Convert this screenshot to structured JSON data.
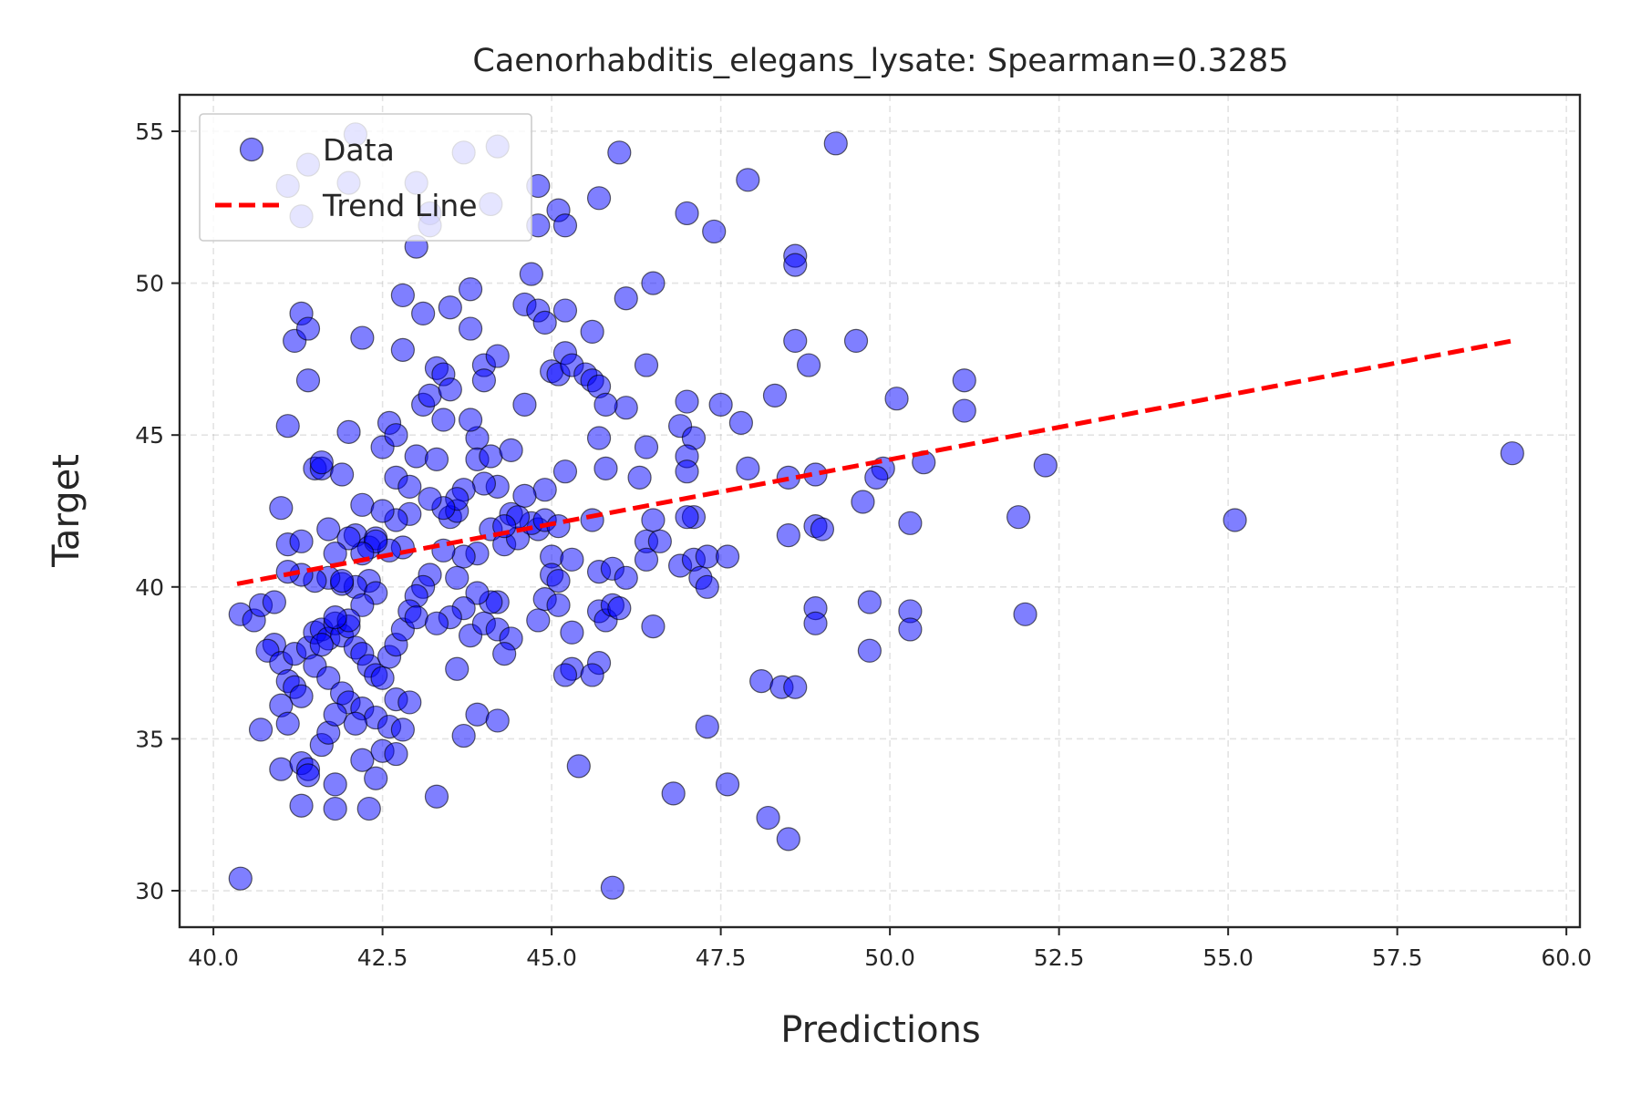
{
  "chart_data": {
    "type": "scatter",
    "title": "Caenorhabditis_elegans_lysate: Spearman=0.3285",
    "xlabel": "Predictions",
    "ylabel": "Target",
    "xlim": [
      39.5,
      60.2
    ],
    "ylim": [
      28.8,
      56.2
    ],
    "xticks": [
      40.0,
      42.5,
      45.0,
      47.5,
      50.0,
      52.5,
      55.0,
      57.5,
      60.0
    ],
    "xtick_labels": [
      "40.0",
      "42.5",
      "45.0",
      "47.5",
      "50.0",
      "52.5",
      "55.0",
      "57.5",
      "60.0"
    ],
    "yticks": [
      30,
      35,
      40,
      45,
      50,
      55
    ],
    "ytick_labels": [
      "30",
      "35",
      "40",
      "45",
      "50",
      "55"
    ],
    "grid": true,
    "legend_position": "top-left",
    "colors": {
      "points": "#0000ff",
      "point_edge": "#000000",
      "trend": "#ff0000"
    },
    "series": [
      {
        "name": "Data",
        "kind": "scatter",
        "points": [
          [
            40.4,
            30.4
          ],
          [
            40.4,
            39.1
          ],
          [
            40.6,
            38.9
          ],
          [
            40.7,
            39.4
          ],
          [
            40.7,
            35.3
          ],
          [
            40.9,
            39.5
          ],
          [
            41.0,
            42.6
          ],
          [
            41.0,
            34.0
          ],
          [
            41.1,
            45.3
          ],
          [
            41.1,
            41.4
          ],
          [
            41.2,
            48.1
          ],
          [
            41.3,
            41.5
          ],
          [
            41.3,
            49.0
          ],
          [
            41.4,
            48.5
          ],
          [
            41.4,
            46.8
          ],
          [
            41.5,
            43.9
          ],
          [
            41.6,
            43.9
          ],
          [
            41.6,
            44.1
          ],
          [
            41.7,
            41.9
          ],
          [
            41.9,
            43.7
          ],
          [
            42.0,
            45.1
          ],
          [
            42.1,
            41.7
          ],
          [
            42.2,
            48.2
          ],
          [
            42.2,
            42.7
          ],
          [
            42.3,
            41.3
          ],
          [
            42.4,
            41.6
          ],
          [
            42.5,
            44.6
          ],
          [
            42.6,
            45.4
          ],
          [
            42.7,
            45.0
          ],
          [
            42.7,
            43.6
          ],
          [
            42.8,
            47.8
          ],
          [
            42.8,
            49.6
          ],
          [
            42.9,
            43.3
          ],
          [
            43.0,
            44.3
          ],
          [
            43.1,
            49.0
          ],
          [
            43.1,
            46.0
          ],
          [
            43.2,
            46.3
          ],
          [
            43.3,
            47.2
          ],
          [
            43.3,
            44.2
          ],
          [
            43.4,
            47.0
          ],
          [
            43.4,
            45.5
          ],
          [
            43.5,
            46.5
          ],
          [
            43.5,
            42.3
          ],
          [
            43.6,
            42.5
          ],
          [
            43.8,
            48.5
          ],
          [
            43.9,
            44.9
          ],
          [
            43.9,
            41.1
          ],
          [
            43.7,
            41.0
          ],
          [
            43.4,
            41.2
          ],
          [
            43.2,
            40.4
          ],
          [
            43.1,
            40.0
          ],
          [
            43.0,
            39.7
          ],
          [
            42.8,
            41.3
          ],
          [
            42.6,
            41.2
          ],
          [
            42.3,
            40.2
          ],
          [
            42.1,
            40.0
          ],
          [
            41.9,
            40.1
          ],
          [
            41.7,
            40.3
          ],
          [
            41.5,
            40.2
          ],
          [
            41.3,
            40.4
          ],
          [
            41.1,
            40.5
          ],
          [
            40.9,
            38.1
          ],
          [
            40.8,
            37.9
          ],
          [
            41.0,
            37.5
          ],
          [
            41.1,
            36.9
          ],
          [
            41.2,
            36.7
          ],
          [
            41.3,
            36.4
          ],
          [
            41.2,
            37.8
          ],
          [
            41.4,
            38.0
          ],
          [
            41.5,
            38.5
          ],
          [
            41.6,
            38.6
          ],
          [
            41.7,
            38.3
          ],
          [
            41.8,
            38.8
          ],
          [
            41.9,
            38.4
          ],
          [
            42.0,
            38.7
          ],
          [
            42.1,
            38.0
          ],
          [
            42.2,
            37.8
          ],
          [
            42.3,
            37.4
          ],
          [
            42.4,
            37.1
          ],
          [
            42.5,
            37.0
          ],
          [
            42.6,
            37.7
          ],
          [
            42.7,
            38.1
          ],
          [
            42.8,
            38.6
          ],
          [
            42.9,
            39.2
          ],
          [
            43.0,
            39.0
          ],
          [
            42.4,
            39.8
          ],
          [
            42.2,
            39.4
          ],
          [
            42.0,
            38.9
          ],
          [
            41.8,
            39.0
          ],
          [
            41.6,
            38.1
          ],
          [
            41.5,
            37.4
          ],
          [
            41.7,
            37.0
          ],
          [
            41.9,
            36.5
          ],
          [
            42.0,
            36.2
          ],
          [
            42.2,
            36.0
          ],
          [
            42.4,
            35.7
          ],
          [
            42.6,
            35.4
          ],
          [
            42.8,
            35.3
          ],
          [
            42.7,
            36.3
          ],
          [
            42.9,
            36.2
          ],
          [
            41.0,
            36.1
          ],
          [
            41.1,
            35.5
          ],
          [
            41.3,
            34.2
          ],
          [
            41.4,
            34.0
          ],
          [
            41.4,
            33.8
          ],
          [
            41.6,
            34.8
          ],
          [
            41.7,
            35.2
          ],
          [
            41.8,
            35.8
          ],
          [
            42.1,
            35.5
          ],
          [
            42.2,
            34.3
          ],
          [
            42.4,
            33.7
          ],
          [
            42.5,
            34.6
          ],
          [
            42.7,
            34.5
          ],
          [
            41.8,
            33.5
          ],
          [
            41.3,
            32.8
          ],
          [
            41.8,
            32.7
          ],
          [
            42.3,
            32.7
          ],
          [
            41.4,
            53.9
          ],
          [
            41.1,
            53.2
          ],
          [
            41.3,
            52.2
          ],
          [
            42.1,
            54.9
          ],
          [
            42.0,
            53.3
          ],
          [
            43.0,
            53.3
          ],
          [
            43.2,
            52.3
          ],
          [
            43.2,
            51.9
          ],
          [
            43.0,
            51.2
          ],
          [
            43.7,
            54.3
          ],
          [
            44.2,
            54.5
          ],
          [
            44.1,
            52.6
          ],
          [
            44.8,
            53.2
          ],
          [
            44.8,
            51.9
          ],
          [
            45.1,
            52.4
          ],
          [
            45.2,
            51.9
          ],
          [
            46.0,
            54.3
          ],
          [
            45.7,
            52.8
          ],
          [
            47.0,
            52.3
          ],
          [
            47.4,
            51.7
          ],
          [
            47.9,
            53.4
          ],
          [
            49.2,
            54.6
          ],
          [
            48.6,
            50.9
          ],
          [
            48.6,
            50.6
          ],
          [
            43.5,
            49.2
          ],
          [
            43.8,
            49.8
          ],
          [
            44.6,
            49.3
          ],
          [
            44.7,
            50.3
          ],
          [
            44.8,
            49.1
          ],
          [
            44.9,
            48.7
          ],
          [
            45.2,
            49.1
          ],
          [
            45.6,
            48.4
          ],
          [
            46.1,
            49.5
          ],
          [
            46.5,
            50.0
          ],
          [
            44.0,
            47.3
          ],
          [
            44.2,
            47.6
          ],
          [
            45.0,
            47.1
          ],
          [
            45.1,
            47.0
          ],
          [
            45.2,
            47.7
          ],
          [
            45.3,
            47.3
          ],
          [
            45.5,
            47.0
          ],
          [
            45.6,
            46.8
          ],
          [
            45.7,
            46.6
          ],
          [
            46.4,
            47.3
          ],
          [
            46.1,
            45.9
          ],
          [
            45.8,
            46.0
          ],
          [
            44.6,
            46.0
          ],
          [
            44.0,
            46.8
          ],
          [
            43.8,
            45.5
          ],
          [
            43.9,
            44.2
          ],
          [
            44.1,
            44.3
          ],
          [
            44.4,
            44.5
          ],
          [
            45.2,
            43.8
          ],
          [
            45.7,
            44.9
          ],
          [
            45.8,
            43.9
          ],
          [
            46.3,
            43.6
          ],
          [
            46.4,
            44.6
          ],
          [
            46.9,
            45.3
          ],
          [
            47.0,
            46.1
          ],
          [
            47.1,
            44.9
          ],
          [
            47.0,
            44.3
          ],
          [
            47.0,
            43.8
          ],
          [
            47.5,
            46.0
          ],
          [
            47.8,
            45.4
          ],
          [
            47.9,
            43.9
          ],
          [
            48.3,
            46.3
          ],
          [
            48.6,
            48.1
          ],
          [
            48.8,
            47.3
          ],
          [
            49.5,
            48.1
          ],
          [
            50.1,
            46.2
          ],
          [
            51.1,
            46.8
          ],
          [
            51.1,
            45.8
          ],
          [
            50.5,
            44.1
          ],
          [
            49.9,
            43.9
          ],
          [
            49.8,
            43.6
          ],
          [
            48.9,
            43.7
          ],
          [
            48.5,
            43.6
          ],
          [
            49.6,
            42.8
          ],
          [
            52.3,
            44.0
          ],
          [
            59.2,
            44.4
          ],
          [
            55.1,
            42.2
          ],
          [
            51.9,
            42.3
          ],
          [
            50.3,
            42.1
          ],
          [
            48.9,
            42.0
          ],
          [
            49.0,
            41.9
          ],
          [
            48.5,
            41.7
          ],
          [
            47.1,
            42.3
          ],
          [
            47.0,
            42.3
          ],
          [
            46.5,
            42.2
          ],
          [
            45.6,
            42.2
          ],
          [
            44.9,
            43.2
          ],
          [
            44.6,
            43.0
          ],
          [
            44.4,
            42.4
          ],
          [
            44.2,
            43.3
          ],
          [
            44.0,
            43.4
          ],
          [
            43.7,
            43.2
          ],
          [
            43.6,
            42.9
          ],
          [
            43.4,
            42.6
          ],
          [
            44.1,
            41.9
          ],
          [
            44.3,
            41.4
          ],
          [
            44.5,
            41.6
          ],
          [
            44.8,
            41.9
          ],
          [
            45.0,
            41.0
          ],
          [
            45.3,
            40.9
          ],
          [
            45.7,
            40.5
          ],
          [
            45.9,
            40.6
          ],
          [
            46.1,
            40.3
          ],
          [
            46.4,
            41.5
          ],
          [
            46.4,
            40.9
          ],
          [
            46.6,
            41.5
          ],
          [
            46.9,
            40.7
          ],
          [
            47.1,
            40.9
          ],
          [
            47.2,
            40.3
          ],
          [
            47.3,
            41.0
          ],
          [
            47.3,
            40.0
          ],
          [
            47.6,
            41.0
          ],
          [
            45.0,
            40.4
          ],
          [
            45.1,
            40.2
          ],
          [
            44.9,
            39.6
          ],
          [
            45.1,
            39.4
          ],
          [
            44.8,
            38.9
          ],
          [
            45.3,
            38.5
          ],
          [
            45.7,
            39.2
          ],
          [
            45.8,
            38.9
          ],
          [
            45.9,
            39.4
          ],
          [
            46.0,
            39.3
          ],
          [
            46.5,
            38.7
          ],
          [
            44.2,
            39.5
          ],
          [
            44.1,
            39.5
          ],
          [
            43.9,
            39.8
          ],
          [
            43.7,
            39.3
          ],
          [
            43.8,
            38.4
          ],
          [
            44.0,
            38.8
          ],
          [
            44.2,
            38.6
          ],
          [
            44.4,
            38.3
          ],
          [
            44.3,
            37.8
          ],
          [
            43.5,
            39.0
          ],
          [
            43.6,
            40.3
          ],
          [
            43.3,
            38.8
          ],
          [
            43.6,
            37.3
          ],
          [
            43.7,
            35.1
          ],
          [
            43.9,
            35.8
          ],
          [
            44.2,
            35.6
          ],
          [
            45.3,
            37.3
          ],
          [
            45.2,
            37.1
          ],
          [
            45.7,
            37.5
          ],
          [
            45.6,
            37.1
          ],
          [
            45.4,
            34.1
          ],
          [
            46.8,
            33.2
          ],
          [
            47.3,
            35.4
          ],
          [
            47.6,
            33.5
          ],
          [
            48.1,
            36.9
          ],
          [
            48.4,
            36.7
          ],
          [
            48.6,
            36.7
          ],
          [
            48.2,
            32.4
          ],
          [
            48.5,
            31.7
          ],
          [
            48.9,
            39.3
          ],
          [
            48.9,
            38.8
          ],
          [
            49.7,
            39.5
          ],
          [
            49.7,
            37.9
          ],
          [
            50.3,
            39.2
          ],
          [
            50.3,
            38.6
          ],
          [
            52.0,
            39.1
          ],
          [
            45.9,
            30.1
          ],
          [
            43.3,
            33.1
          ],
          [
            44.7,
            42.1
          ],
          [
            44.9,
            42.2
          ],
          [
            45.1,
            42.0
          ],
          [
            44.5,
            42.3
          ],
          [
            44.3,
            42.0
          ],
          [
            43.2,
            42.9
          ],
          [
            42.9,
            42.4
          ],
          [
            42.7,
            42.2
          ],
          [
            42.5,
            42.5
          ],
          [
            42.4,
            41.5
          ],
          [
            42.2,
            41.1
          ],
          [
            42.0,
            41.6
          ],
          [
            41.8,
            41.1
          ],
          [
            41.9,
            40.2
          ]
        ]
      },
      {
        "name": "Trend Line",
        "kind": "line",
        "style": "dashed",
        "points": [
          [
            40.35,
            40.1
          ],
          [
            59.2,
            48.1
          ]
        ]
      }
    ]
  }
}
